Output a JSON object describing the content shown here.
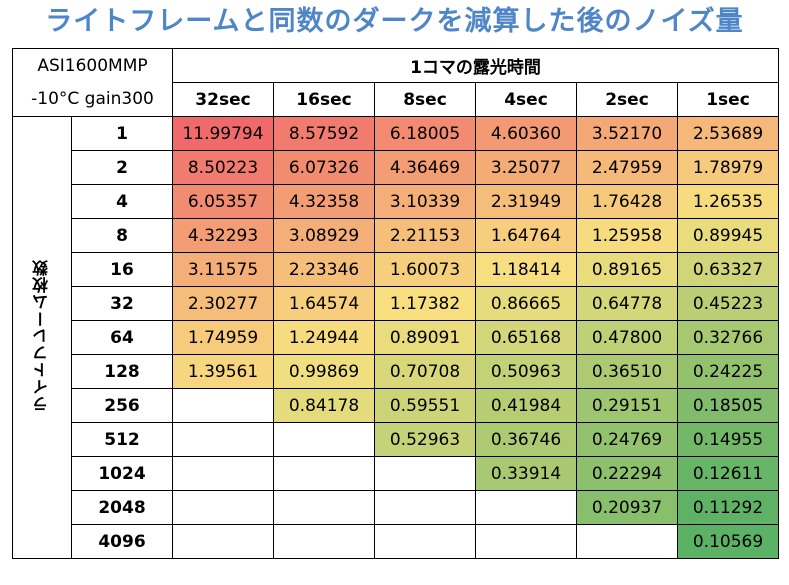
{
  "title": "ライトフレームと同数のダークを減算した後のノイズ量",
  "meta": {
    "camera": "ASI1600MMP",
    "settings": "-10°C gain300"
  },
  "colors": {
    "title": "#4f86c7",
    "min": "#5bb164",
    "mid": "#f7e180",
    "max": "#f06a6b"
  },
  "chart_data": {
    "type": "heatmap",
    "title": "ライトフレームと同数のダークを減算した後のノイズ量",
    "x_group_label": "1コマの露光時間",
    "y_label": "ライトフレーム枚数",
    "columns": [
      "32sec",
      "16sec",
      "8sec",
      "4sec",
      "2sec",
      "1sec"
    ],
    "rows": [
      "1",
      "2",
      "4",
      "8",
      "16",
      "32",
      "64",
      "128",
      "256",
      "512",
      "1024",
      "2048",
      "4096"
    ],
    "values": [
      [
        "11.99794",
        "8.57592",
        "6.18005",
        "4.60360",
        "3.52170",
        "2.53689"
      ],
      [
        "8.50223",
        "6.07326",
        "4.36469",
        "3.25077",
        "2.47959",
        "1.78979"
      ],
      [
        "6.05357",
        "4.32358",
        "3.10339",
        "2.31949",
        "1.76428",
        "1.26535"
      ],
      [
        "4.32293",
        "3.08929",
        "2.21153",
        "1.64764",
        "1.25958",
        "0.89945"
      ],
      [
        "3.11575",
        "2.23346",
        "1.60073",
        "1.18414",
        "0.89165",
        "0.63327"
      ],
      [
        "2.30277",
        "1.64574",
        "1.17382",
        "0.86665",
        "0.64778",
        "0.45223"
      ],
      [
        "1.74959",
        "1.24944",
        "0.89091",
        "0.65168",
        "0.47800",
        "0.32766"
      ],
      [
        "1.39561",
        "0.99869",
        "0.70708",
        "0.50963",
        "0.36510",
        "0.24225"
      ],
      [
        "",
        "0.84178",
        "0.59551",
        "0.41984",
        "0.29151",
        "0.18505"
      ],
      [
        "",
        "",
        "0.52963",
        "0.36746",
        "0.24769",
        "0.14955"
      ],
      [
        "",
        "",
        "",
        "0.33914",
        "0.22294",
        "0.12611"
      ],
      [
        "",
        "",
        "",
        "",
        "0.20937",
        "0.11292"
      ],
      [
        "",
        "",
        "",
        "",
        "",
        "0.10569"
      ]
    ]
  }
}
